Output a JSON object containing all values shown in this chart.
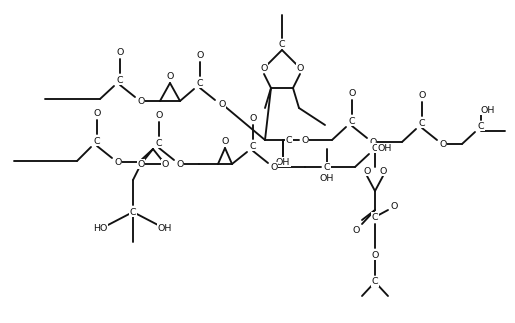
{
  "fig_w": 5.15,
  "fig_h": 3.23,
  "dpi": 100,
  "bg": "#ffffff",
  "fc": "#1a1a1a",
  "lw": 1.3,
  "fs": 6.8,
  "xlim": [
    0,
    515
  ],
  "ylim": [
    0,
    323
  ]
}
